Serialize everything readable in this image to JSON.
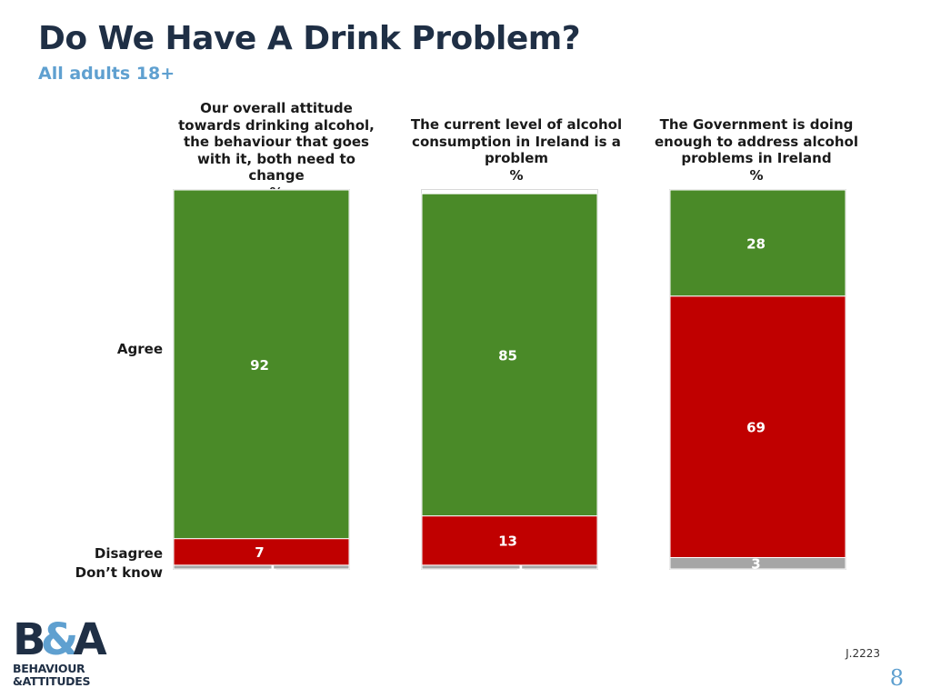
{
  "title": "Do We Have A Drink Problem?",
  "subtitle": "All adults 18+",
  "row_labels": {
    "agree": "Agree",
    "disagree": "Disagree",
    "dont_know": "Don’t know"
  },
  "columns": [
    {
      "header": "Our overall attitude towards drinking alcohol, the behaviour that goes with it, both need to change",
      "unit": "%"
    },
    {
      "header": "The current level of alcohol consumption in Ireland is a problem",
      "unit": "%"
    },
    {
      "header": "The Government is doing enough to address alcohol problems in Ireland",
      "unit": "%"
    }
  ],
  "colors": {
    "agree": "#4a8a28",
    "disagree": "#c00000",
    "dont_know": "#a6a6a6"
  },
  "chart_data": {
    "type": "bar",
    "stacked": true,
    "categories": [
      "Our overall attitude towards drinking alcohol, the behaviour that goes with it, both need to change",
      "The current level of alcohol consumption in Ireland is a problem",
      "The Government is doing enough to address alcohol problems in Ireland"
    ],
    "series": [
      {
        "name": "Agree",
        "values": [
          92,
          85,
          28
        ]
      },
      {
        "name": "Disagree",
        "values": [
          7,
          13,
          69
        ]
      },
      {
        "name": "Don’t know",
        "values": [
          1,
          1,
          3
        ]
      }
    ],
    "ylim": [
      0,
      100
    ]
  },
  "logo": {
    "line1": "BEHAVIOUR",
    "line2": "&ATTITUDES"
  },
  "job_code": "J.2223",
  "page_number": "8"
}
